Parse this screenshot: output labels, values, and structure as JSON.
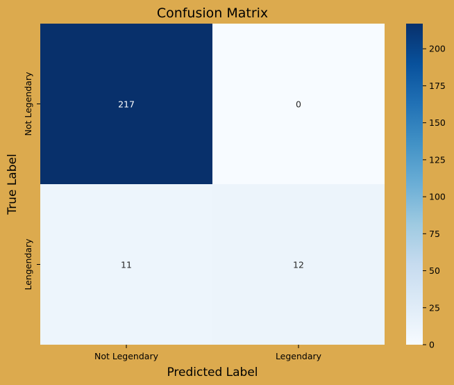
{
  "chart_data": {
    "type": "heatmap",
    "title": "Confusion Matrix",
    "xlabel": "Predicted Label",
    "ylabel": "True Label",
    "x_categories": [
      "Not Legendary",
      "Legendary"
    ],
    "y_categories": [
      "Not Legendary",
      "Lengendary"
    ],
    "values": [
      [
        217,
        0
      ],
      [
        11,
        12
      ]
    ],
    "colorbar": {
      "min": 0,
      "max": 217,
      "ticks": [
        0,
        25,
        50,
        75,
        100,
        125,
        150,
        175,
        200
      ],
      "colormap": "Blues"
    },
    "annotations": true,
    "grid": false
  }
}
